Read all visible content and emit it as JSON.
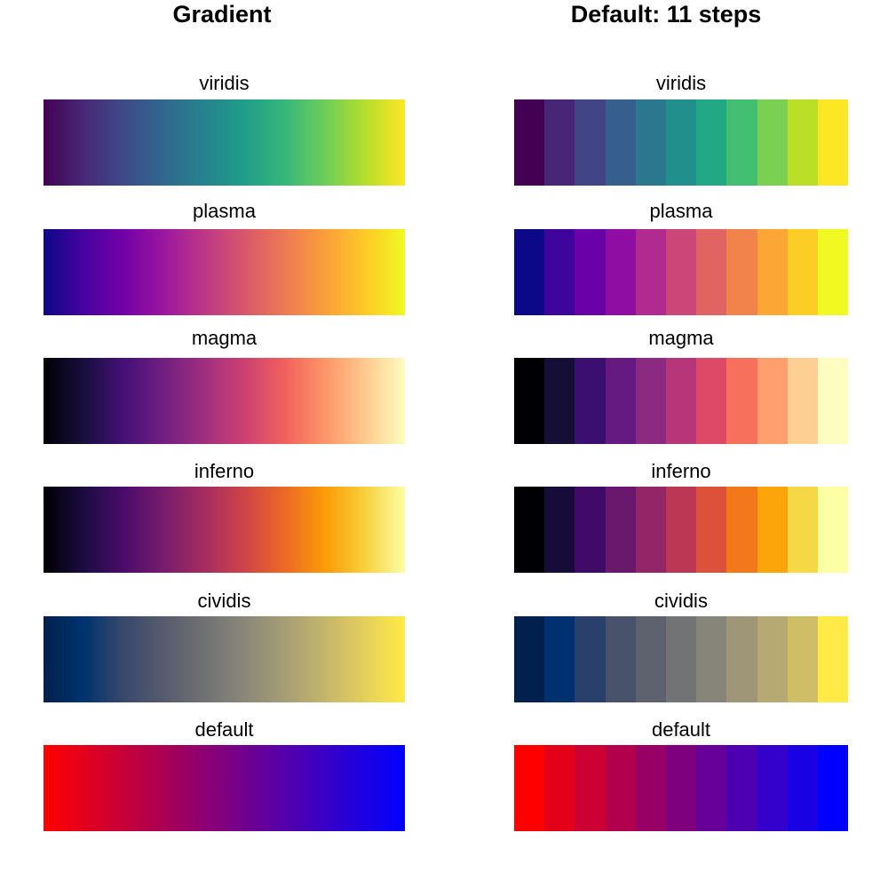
{
  "titles": {
    "left": "Gradient",
    "right": "Default: 11 steps"
  },
  "chart_data": {
    "type": "heatmap",
    "panels": [
      "Gradient",
      "Default: 11 steps"
    ],
    "steps": 11,
    "palettes": [
      {
        "name": "viridis",
        "colors": [
          "#440154",
          "#482878",
          "#3E4A89",
          "#31688E",
          "#26828E",
          "#1F9E89",
          "#35B779",
          "#6DCD59",
          "#B4DE2C",
          "#FDE725"
        ],
        "steps_colors": [
          "#440154",
          "#482576",
          "#414487",
          "#35608D",
          "#2A788E",
          "#21908C",
          "#22A884",
          "#43BF71",
          "#7AD151",
          "#BBDF27",
          "#FDE725"
        ]
      },
      {
        "name": "plasma",
        "colors": [
          "#0D0887",
          "#47039F",
          "#7301A8",
          "#9C179E",
          "#BD3786",
          "#D8576B",
          "#ED7953",
          "#FA9E3B",
          "#FDC926",
          "#F0F921"
        ],
        "steps_colors": [
          "#0D0887",
          "#3E049C",
          "#6A00A8",
          "#900DA4",
          "#B12A90",
          "#CC4778",
          "#E16462",
          "#F2844B",
          "#FCA636",
          "#FCCE25",
          "#F0F921"
        ]
      },
      {
        "name": "magma",
        "colors": [
          "#000004",
          "#180F3E",
          "#451077",
          "#721F81",
          "#9F2F7F",
          "#CD4071",
          "#F1605D",
          "#FD9567",
          "#FEC98D",
          "#FCFDBF"
        ],
        "steps_colors": [
          "#000004",
          "#150E37",
          "#3B0F70",
          "#641A80",
          "#8C2981",
          "#B63679",
          "#DE4968",
          "#F7705C",
          "#FE9F6D",
          "#FECF92",
          "#FCFDBF"
        ]
      },
      {
        "name": "inferno",
        "colors": [
          "#000004",
          "#1B0C42",
          "#4B0C6B",
          "#781C6D",
          "#A52C60",
          "#CF4446",
          "#ED6925",
          "#FB9A06",
          "#F7D03C",
          "#FCFFA4"
        ],
        "steps_colors": [
          "#000004",
          "#160B39",
          "#420A68",
          "#6A176E",
          "#932667",
          "#BC3754",
          "#DD513A",
          "#F37819",
          "#FCA50A",
          "#F6D746",
          "#FCFFA4"
        ]
      },
      {
        "name": "cividis",
        "colors": [
          "#00204D",
          "#00336F",
          "#39486B",
          "#575C6D",
          "#707173",
          "#8A8779",
          "#A69D75",
          "#C4B56C",
          "#E4CF5B",
          "#FFEA46"
        ],
        "steps_colors": [
          "#00204D",
          "#00306F",
          "#2A406C",
          "#48526B",
          "#5E626E",
          "#727374",
          "#878479",
          "#9E9677",
          "#B6A971",
          "#D0BE67",
          "#FFEA46"
        ]
      },
      {
        "name": "default",
        "colors": [
          "#FF0000",
          "#CC0033",
          "#990066",
          "#660099",
          "#3300CC",
          "#0000FF"
        ],
        "steps_colors": [
          "#FF0000",
          "#E50019",
          "#CC0033",
          "#B2004C",
          "#990066",
          "#7F007F",
          "#660099",
          "#4C00B2",
          "#3300CC",
          "#1900E5",
          "#0000FF"
        ]
      }
    ]
  }
}
